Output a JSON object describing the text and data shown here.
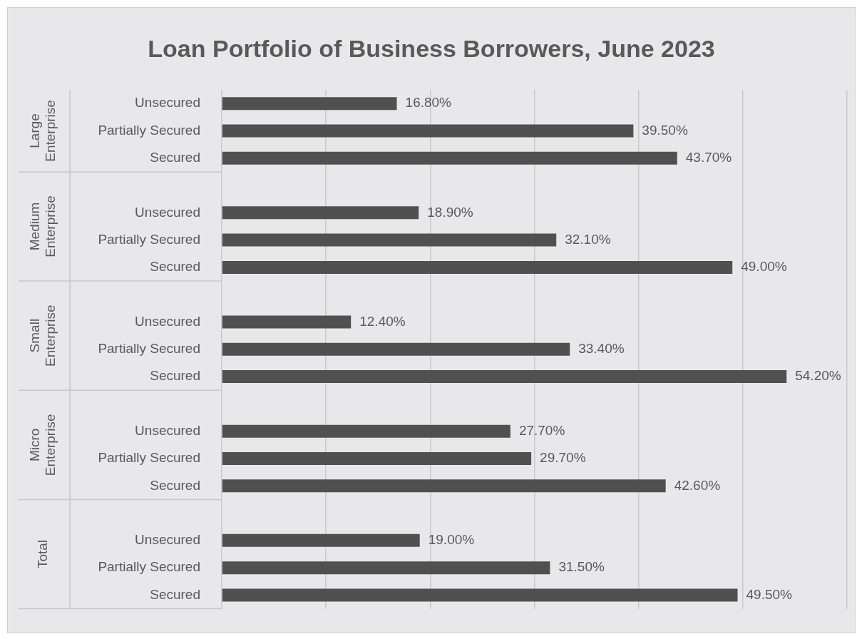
{
  "chart_data": {
    "type": "bar",
    "orientation": "horizontal",
    "title": "Loan Portfolio of Business Borrowers, June 2023",
    "categories": [
      "Unsecured",
      "Partially Secured",
      "Secured",
      null,
      "Unsecured",
      "Partially Secured",
      "Secured",
      null,
      "Unsecured",
      "Partially Secured",
      "Secured",
      null,
      "Unsecured",
      "Partially Secured",
      "Secured",
      null,
      "Unsecured",
      "Partially Secured",
      "Secured"
    ],
    "values": [
      16.8,
      39.5,
      43.7,
      null,
      18.9,
      32.1,
      49.0,
      null,
      12.4,
      33.4,
      54.2,
      null,
      27.7,
      29.7,
      42.6,
      null,
      19.0,
      31.5,
      49.5
    ],
    "value_labels": [
      "16.80%",
      "39.50%",
      "43.70%",
      null,
      "18.90%",
      "32.10%",
      "49.00%",
      null,
      "12.40%",
      "33.40%",
      "54.20%",
      null,
      "27.70%",
      "29.70%",
      "42.60%",
      null,
      "19.00%",
      "31.50%",
      "49.50%"
    ],
    "color": "#505050",
    "xlim": [
      0,
      60
    ],
    "xticks": [
      {
        "value": 0,
        "label": null
      },
      {
        "value": 10,
        "label": null
      },
      {
        "value": 20,
        "label": null
      },
      {
        "value": 30,
        "label": null
      },
      {
        "value": 40,
        "label": null
      },
      {
        "value": 50,
        "label": null
      },
      {
        "value": 60,
        "label": null
      }
    ],
    "grid": "x",
    "legend": false,
    "tick_labels": "y",
    "annotations": [
      "Large Enterprise",
      "Medium Enterprise",
      "Small Enterprise",
      "Micro Enterprise",
      "Total"
    ]
  }
}
